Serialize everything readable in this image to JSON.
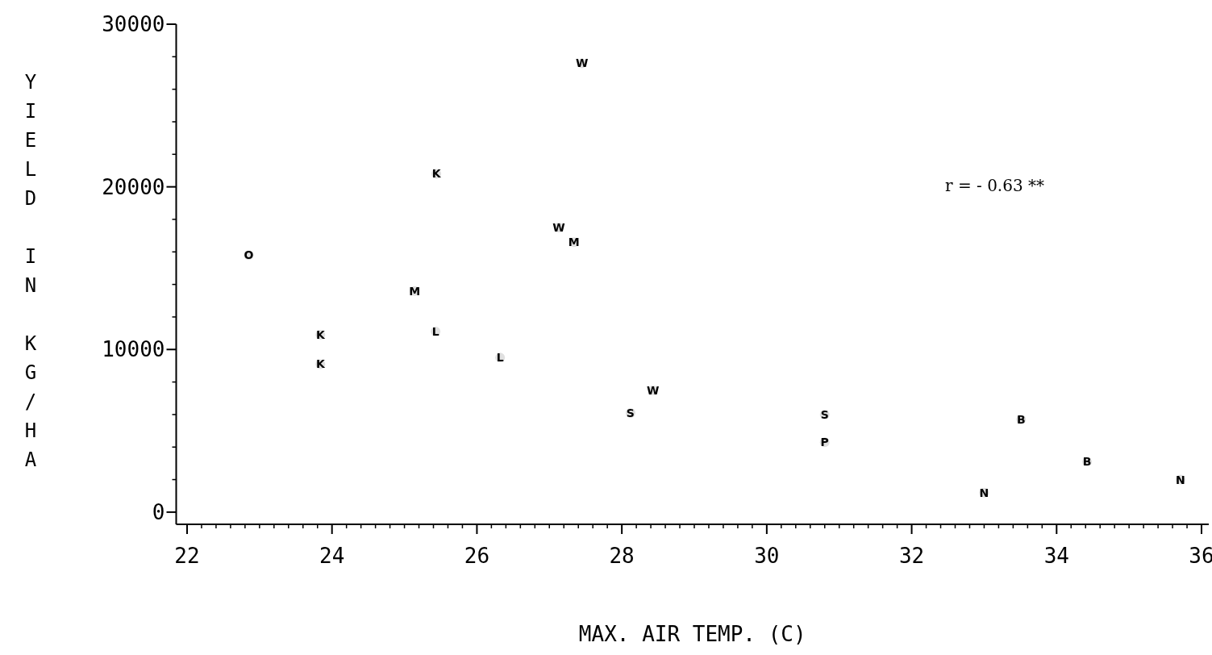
{
  "chart_data": {
    "type": "scatter",
    "xlabel": "MAX. AIR TEMP. (C)",
    "ylabel": "YIELD IN KG/HA",
    "annotations": [
      "r = - 0.63 **"
    ],
    "legend": false,
    "grid": false,
    "xlim": [
      21.85,
      36.1
    ],
    "ylim": [
      -750,
      30000
    ],
    "xticks": [
      22,
      {
        "value": 22.2,
        "label": null
      },
      {
        "value": 22.4,
        "label": null
      },
      {
        "value": 22.6,
        "label": null
      },
      {
        "value": 22.8,
        "label": null
      },
      {
        "value": 23,
        "label": null
      },
      {
        "value": 23.2,
        "label": null
      },
      {
        "value": 23.4,
        "label": null
      },
      {
        "value": 23.6,
        "label": null
      },
      {
        "value": 23.8,
        "label": null
      },
      24,
      {
        "value": 24.2,
        "label": null
      },
      {
        "value": 24.4,
        "label": null
      },
      {
        "value": 24.6,
        "label": null
      },
      {
        "value": 24.8,
        "label": null
      },
      {
        "value": 25,
        "label": null
      },
      {
        "value": 25.2,
        "label": null
      },
      {
        "value": 25.4,
        "label": null
      },
      {
        "value": 25.6,
        "label": null
      },
      {
        "value": 25.8,
        "label": null
      },
      26,
      {
        "value": 26.2,
        "label": null
      },
      {
        "value": 26.4,
        "label": null
      },
      {
        "value": 26.6,
        "label": null
      },
      {
        "value": 26.8,
        "label": null
      },
      {
        "value": 27,
        "label": null
      },
      {
        "value": 27.2,
        "label": null
      },
      {
        "value": 27.4,
        "label": null
      },
      {
        "value": 27.6,
        "label": null
      },
      {
        "value": 27.8,
        "label": null
      },
      28,
      {
        "value": 28.2,
        "label": null
      },
      {
        "value": 28.4,
        "label": null
      },
      {
        "value": 28.6,
        "label": null
      },
      {
        "value": 28.8,
        "label": null
      },
      {
        "value": 29,
        "label": null
      },
      {
        "value": 29.2,
        "label": null
      },
      {
        "value": 29.4,
        "label": null
      },
      {
        "value": 29.6,
        "label": null
      },
      {
        "value": 29.8,
        "label": null
      },
      30,
      {
        "value": 30.2,
        "label": null
      },
      {
        "value": 30.4,
        "label": null
      },
      {
        "value": 30.6,
        "label": null
      },
      {
        "value": 30.8,
        "label": null
      },
      {
        "value": 31,
        "label": null
      },
      {
        "value": 31.2,
        "label": null
      },
      {
        "value": 31.4,
        "label": null
      },
      {
        "value": 31.6,
        "label": null
      },
      {
        "value": 31.8,
        "label": null
      },
      32,
      {
        "value": 32.2,
        "label": null
      },
      {
        "value": 32.4,
        "label": null
      },
      {
        "value": 32.6,
        "label": null
      },
      {
        "value": 32.8,
        "label": null
      },
      {
        "value": 33,
        "label": null
      },
      {
        "value": 33.2,
        "label": null
      },
      {
        "value": 33.4,
        "label": null
      },
      {
        "value": 33.6,
        "label": null
      },
      {
        "value": 33.8,
        "label": null
      },
      34,
      {
        "value": 34.2,
        "label": null
      },
      {
        "value": 34.4,
        "label": null
      },
      {
        "value": 34.6,
        "label": null
      },
      {
        "value": 34.8,
        "label": null
      },
      {
        "value": 35,
        "label": null
      },
      {
        "value": 35.2,
        "label": null
      },
      {
        "value": 35.4,
        "label": null
      },
      {
        "value": 35.6,
        "label": null
      },
      {
        "value": 35.8,
        "label": null
      },
      36
    ],
    "yticks": [
      0,
      {
        "value": 2000,
        "label": null
      },
      {
        "value": 4000,
        "label": null
      },
      {
        "value": 6000,
        "label": null
      },
      {
        "value": 8000,
        "label": null
      },
      10000,
      {
        "value": 12000,
        "label": null
      },
      {
        "value": 14000,
        "label": null
      },
      {
        "value": 16000,
        "label": null
      },
      {
        "value": 18000,
        "label": null
      },
      20000,
      {
        "value": 22000,
        "label": null
      },
      {
        "value": 24000,
        "label": null
      },
      {
        "value": 26000,
        "label": null
      },
      {
        "value": 28000,
        "label": null
      },
      30000
    ],
    "series": [
      {
        "name": "W",
        "color": "#000000",
        "x": [
          27.45,
          27.13,
          28.43
        ],
        "values": [
          27600,
          17500,
          7500
        ]
      },
      {
        "name": "K",
        "color": "#000000",
        "x": [
          25.44,
          23.84,
          23.84
        ],
        "values": [
          20800,
          10900,
          9100
        ]
      },
      {
        "name": "M",
        "color": "#000000",
        "x": [
          27.34,
          25.14
        ],
        "values": [
          16600,
          13600
        ]
      },
      {
        "name": "O",
        "color": "#000000",
        "x": [
          22.85
        ],
        "values": [
          15800
        ]
      },
      {
        "name": "L",
        "color": "#000000",
        "x": [
          25.43,
          26.32
        ],
        "values": [
          11100,
          9500
        ]
      },
      {
        "name": "S",
        "color": "#000000",
        "x": [
          28.12,
          30.8
        ],
        "values": [
          6100,
          6000
        ]
      },
      {
        "name": "P",
        "color": "#000000",
        "x": [
          30.8
        ],
        "values": [
          4300
        ]
      },
      {
        "name": "B",
        "color": "#000000",
        "x": [
          33.51,
          34.42
        ],
        "values": [
          5700,
          3100
        ]
      },
      {
        "name": "N",
        "color": "#000000",
        "x": [
          33.0,
          35.71
        ],
        "values": [
          1200,
          2000
        ]
      }
    ]
  }
}
